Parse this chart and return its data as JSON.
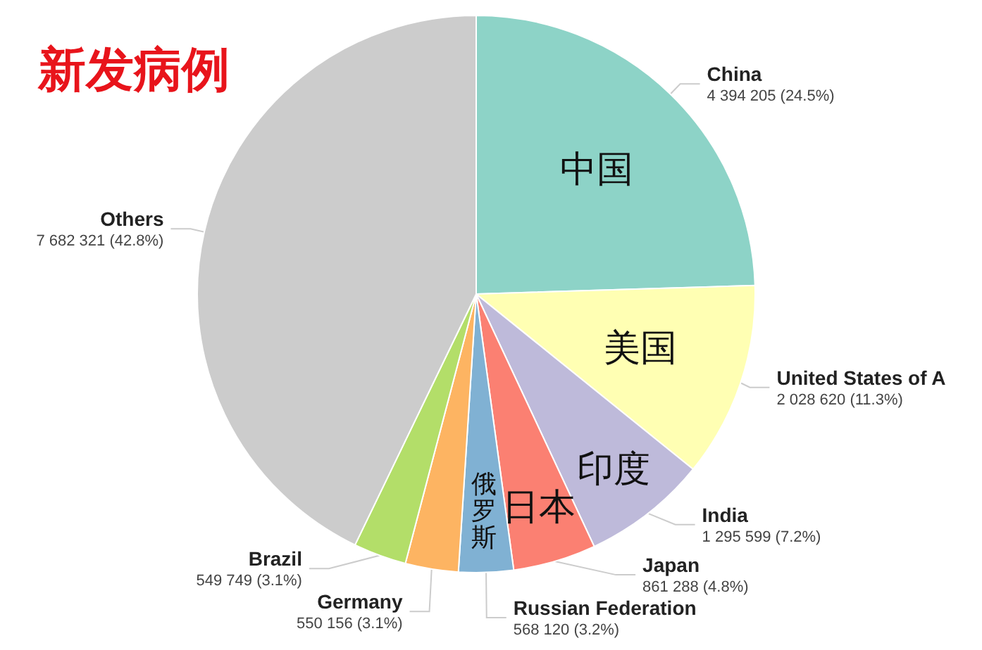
{
  "chart_data": {
    "type": "pie",
    "title": "新发病例",
    "categories": [
      "China",
      "United States of A",
      "India",
      "Japan",
      "Russian Federation",
      "Germany",
      "Brazil",
      "Others"
    ],
    "values": [
      4394205,
      2028620,
      1295599,
      861288,
      568120,
      550156,
      549749,
      7682321
    ],
    "value_labels": [
      "4 394 205 (24.5%)",
      "2 028 620 (11.3%)",
      "1 295 599 (7.2%)",
      "861 288 (4.8%)",
      "568 120 (3.2%)",
      "550 156 (3.1%)",
      "549 749 (3.1%)",
      "7 682 321 (42.8%)"
    ],
    "colors": [
      "#8dd3c7",
      "#ffffb3",
      "#bebada",
      "#fb8072",
      "#80b1d3",
      "#fdb462",
      "#b3de69",
      "#cccccc"
    ],
    "annotations": [
      {
        "text": "中国",
        "x": "China"
      },
      {
        "text": "美国",
        "x": "United States of A"
      },
      {
        "text": "印度",
        "x": "India"
      },
      {
        "text": "日本",
        "x": "Japan"
      },
      {
        "text": "俄罗斯",
        "x": "Russian Federation"
      }
    ],
    "legend": false
  }
}
